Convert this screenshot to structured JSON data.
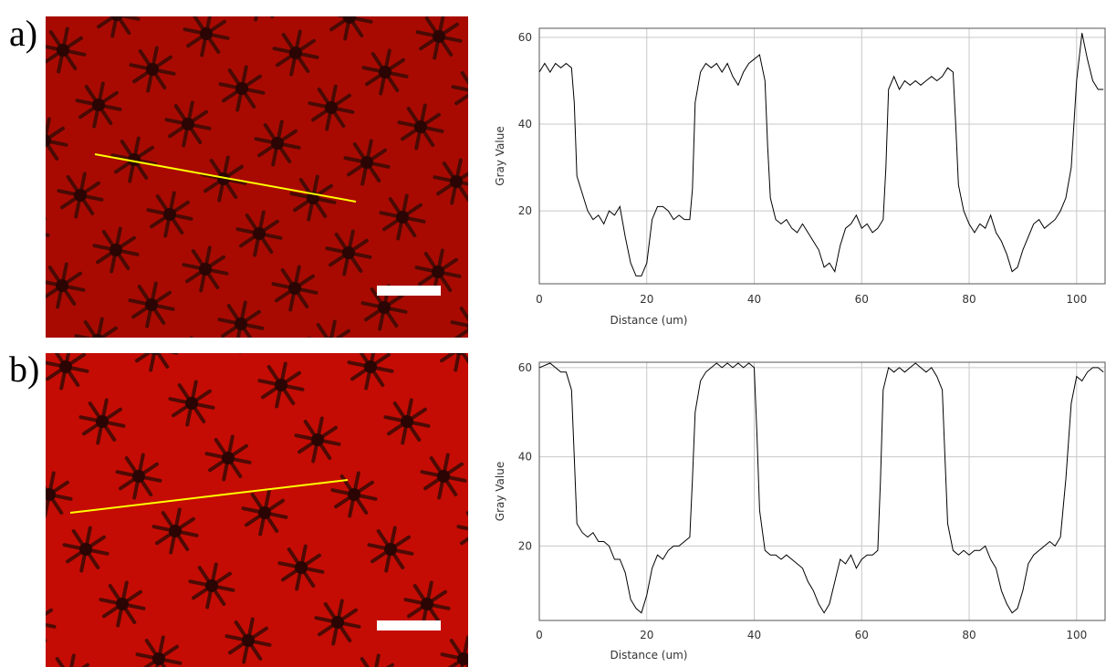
{
  "chart_data": [
    {
      "type": "line",
      "panel": "a)",
      "xlabel": "Distance (um)",
      "ylabel": "Gray Value",
      "xlim": [
        0,
        105.3
      ],
      "ylim": [
        3.2,
        62.1
      ],
      "xticks": [
        0,
        20,
        40,
        60,
        80,
        100
      ],
      "yticks": [
        20,
        40,
        60
      ],
      "grid": true,
      "color": "#000000",
      "x": [
        0,
        1,
        2,
        3,
        4,
        5,
        6,
        6.5,
        7,
        8,
        9,
        10,
        11,
        12,
        13,
        14,
        15,
        16,
        17,
        18,
        19,
        20,
        21,
        22,
        23,
        24,
        25,
        26,
        27,
        28,
        28.5,
        29,
        30,
        31,
        32,
        33,
        34,
        35,
        36,
        37,
        38,
        39,
        40,
        41,
        42,
        42.5,
        43,
        44,
        45,
        46,
        47,
        48,
        49,
        50,
        51,
        52,
        53,
        54,
        55,
        56,
        57,
        58,
        59,
        60,
        61,
        62,
        63,
        64,
        64.5,
        65,
        66,
        67,
        68,
        69,
        70,
        71,
        72,
        73,
        74,
        75,
        76,
        77,
        77.5,
        78,
        79,
        80,
        81,
        82,
        83,
        84,
        85,
        86,
        87,
        88,
        89,
        90,
        91,
        92,
        93,
        94,
        95,
        96,
        97,
        98,
        99,
        100,
        101,
        102,
        103,
        104,
        105
      ],
      "values": [
        52,
        54,
        52,
        54,
        53,
        54,
        53,
        45,
        28,
        24,
        20,
        18,
        19,
        17,
        20,
        19,
        21,
        14,
        8,
        5,
        5,
        8,
        18,
        21,
        21,
        20,
        18,
        19,
        18,
        18,
        25,
        45,
        52,
        54,
        53,
        54,
        52,
        54,
        51,
        49,
        52,
        54,
        55,
        56,
        50,
        35,
        23,
        18,
        17,
        18,
        16,
        15,
        17,
        15,
        13,
        11,
        7,
        8,
        6,
        12,
        16,
        17,
        19,
        16,
        17,
        15,
        16,
        18,
        30,
        48,
        51,
        48,
        50,
        49,
        50,
        49,
        50,
        51,
        50,
        51,
        53,
        52,
        40,
        26,
        20,
        17,
        15,
        17,
        16,
        19,
        15,
        13,
        10,
        6,
        7,
        11,
        14,
        17,
        18,
        16,
        17,
        18,
        20,
        23,
        30,
        50,
        61,
        55,
        50,
        48,
        48
      ]
    },
    {
      "type": "line",
      "panel": "b)",
      "xlabel": "Distance (um)",
      "ylabel": "Gray Value",
      "xlim": [
        0,
        105.3
      ],
      "ylim": [
        3.3,
        61.2
      ],
      "xticks": [
        0,
        20,
        40,
        60,
        80,
        100
      ],
      "yticks": [
        20,
        40,
        60
      ],
      "grid": true,
      "color": "#000000",
      "x": [
        0,
        2,
        4,
        5,
        6,
        6.5,
        7,
        8,
        9,
        10,
        11,
        12,
        13,
        14,
        15,
        16,
        17,
        18,
        19,
        20,
        21,
        22,
        23,
        24,
        25,
        26,
        27,
        28,
        28.5,
        29,
        30,
        31,
        32,
        33,
        34,
        35,
        36,
        37,
        38,
        39,
        40,
        40.5,
        41,
        42,
        43,
        44,
        45,
        46,
        47,
        48,
        49,
        50,
        51,
        52,
        53,
        54,
        55,
        56,
        57,
        58,
        59,
        60,
        61,
        62,
        63,
        63.5,
        64,
        65,
        66,
        67,
        68,
        69,
        70,
        71,
        72,
        73,
        74,
        75,
        75.5,
        76,
        77,
        78,
        79,
        80,
        81,
        82,
        83,
        84,
        85,
        86,
        87,
        88,
        89,
        90,
        91,
        92,
        93,
        94,
        95,
        96,
        97,
        98,
        99,
        100,
        101,
        102,
        103,
        104,
        105
      ],
      "values": [
        60,
        61,
        59,
        59,
        55,
        40,
        25,
        23,
        22,
        23,
        21,
        21,
        20,
        17,
        17,
        14,
        8,
        6,
        5,
        9,
        15,
        18,
        17,
        19,
        20,
        20,
        21,
        22,
        35,
        50,
        57,
        59,
        60,
        61,
        60,
        61,
        60,
        61,
        60,
        61,
        60,
        45,
        28,
        19,
        18,
        18,
        17,
        18,
        17,
        16,
        15,
        12,
        10,
        7,
        5,
        7,
        12,
        17,
        16,
        18,
        15,
        17,
        18,
        18,
        19,
        35,
        55,
        60,
        59,
        60,
        59,
        60,
        61,
        60,
        59,
        60,
        58,
        55,
        40,
        25,
        19,
        18,
        19,
        18,
        19,
        19,
        20,
        17,
        15,
        10,
        7,
        5,
        6,
        10,
        16,
        18,
        19,
        20,
        21,
        20,
        22,
        35,
        52,
        58,
        57,
        59,
        60,
        60,
        59
      ]
    }
  ]
}
